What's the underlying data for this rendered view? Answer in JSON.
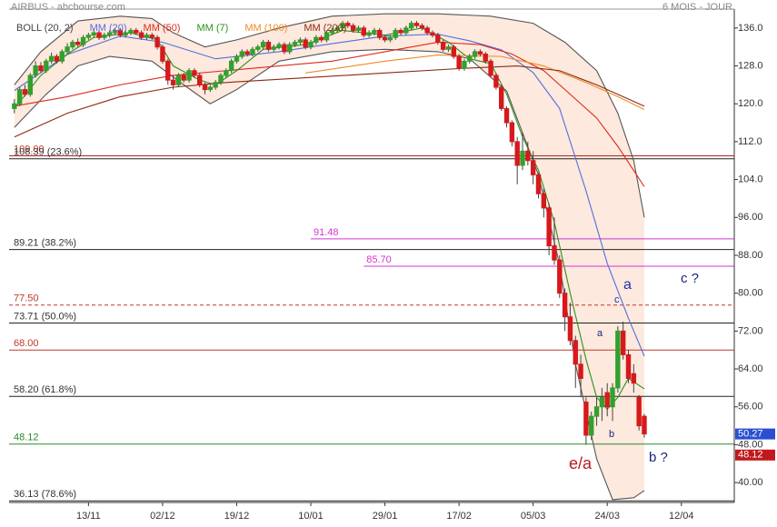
{
  "chart_data": {
    "type": "candlestick",
    "title": "AIRBUS - abcbourse.com",
    "period": "6 MOIS - JOUR",
    "xlim": [
      -1,
      136
    ],
    "ylim": [
      35.8,
      140
    ],
    "xticks": [
      {
        "value": 14,
        "label": "13/11"
      },
      {
        "value": 28,
        "label": "02/12"
      },
      {
        "value": 42,
        "label": "19/12"
      },
      {
        "value": 56,
        "label": "10/01"
      },
      {
        "value": 70,
        "label": "29/01"
      },
      {
        "value": 84,
        "label": "17/02"
      },
      {
        "value": 98,
        "label": "05/03"
      },
      {
        "value": 112,
        "label": "24/03"
      },
      {
        "value": 126,
        "label": "12/04"
      }
    ],
    "yticks": [
      {
        "value": 136,
        "label": "136.0"
      },
      {
        "value": 128,
        "label": "128.0"
      },
      {
        "value": 120,
        "label": "120.0"
      },
      {
        "value": 112,
        "label": "112.0"
      },
      {
        "value": 104,
        "label": "104.0"
      },
      {
        "value": 96,
        "label": "96.00"
      },
      {
        "value": 88,
        "label": "88.00"
      },
      {
        "value": 80,
        "label": "80.00"
      },
      {
        "value": 72,
        "label": "72.00"
      },
      {
        "value": 64,
        "label": "64.00"
      },
      {
        "value": 56,
        "label": "56.00"
      },
      {
        "value": 48,
        "label": "48.00"
      },
      {
        "value": 40,
        "label": "40.00"
      }
    ],
    "up_color": "#33a02c",
    "down_color": "#d7191c",
    "band_color": "#fde3d4",
    "candles": [
      [
        119,
        121,
        118,
        120
      ],
      [
        120,
        123.5,
        119.5,
        123
      ],
      [
        123,
        124,
        121.5,
        122
      ],
      [
        122,
        126.5,
        121.5,
        126
      ],
      [
        126,
        129,
        125.5,
        128
      ],
      [
        128,
        128.8,
        126.5,
        127
      ],
      [
        127,
        129.5,
        126.5,
        129
      ],
      [
        129,
        130.8,
        128.5,
        130
      ],
      [
        130,
        130.5,
        128.5,
        129
      ],
      [
        129,
        131.5,
        128.5,
        131
      ],
      [
        131,
        132.8,
        130.5,
        132
      ],
      [
        132,
        133.5,
        131.5,
        133
      ],
      [
        133,
        133.8,
        132,
        132.5
      ],
      [
        132.5,
        134.5,
        132,
        134
      ],
      [
        134,
        135,
        133.5,
        134.5
      ],
      [
        134.5,
        135.8,
        134,
        135
      ],
      [
        135,
        135.5,
        133.5,
        134
      ],
      [
        134,
        135,
        133.5,
        134.5
      ],
      [
        134.5,
        135.5,
        134,
        135
      ],
      [
        135,
        136,
        134.5,
        135.5
      ],
      [
        135.5,
        136,
        134,
        134.5
      ],
      [
        134.5,
        135.5,
        134,
        135
      ],
      [
        135,
        136,
        134.5,
        135.5
      ],
      [
        135.5,
        136,
        134.5,
        135
      ],
      [
        135,
        135.5,
        133.5,
        134
      ],
      [
        134,
        135,
        133.5,
        134.5
      ],
      [
        134.5,
        135,
        133.5,
        134
      ],
      [
        134,
        134.5,
        131.5,
        132
      ],
      [
        132,
        132.5,
        128.5,
        129
      ],
      [
        129,
        129.5,
        124,
        125
      ],
      [
        125,
        126,
        123,
        124
      ],
      [
        124,
        126.5,
        123.5,
        126
      ],
      [
        126,
        126.5,
        124.5,
        125
      ],
      [
        125,
        127.5,
        124.5,
        127
      ],
      [
        127,
        127.5,
        125.5,
        126
      ],
      [
        126,
        126.5,
        123.5,
        124
      ],
      [
        124,
        124.5,
        122,
        123
      ],
      [
        123,
        124,
        122.5,
        123.5
      ],
      [
        123.5,
        125,
        123,
        124.5
      ],
      [
        124.5,
        126.5,
        124,
        126
      ],
      [
        126,
        127.5,
        125.5,
        127
      ],
      [
        127,
        129.5,
        126.5,
        129
      ],
      [
        129,
        130.5,
        128.5,
        130
      ],
      [
        130,
        131.5,
        129.5,
        131
      ],
      [
        131,
        131.5,
        130,
        130.5
      ],
      [
        130.5,
        132,
        130,
        131.5
      ],
      [
        131.5,
        132.5,
        131,
        132
      ],
      [
        132,
        133.5,
        131.5,
        133
      ],
      [
        133,
        133.5,
        131,
        131.5
      ],
      [
        131.5,
        132.5,
        131,
        132
      ],
      [
        132,
        133,
        131.5,
        132.5
      ],
      [
        132.5,
        133,
        130.5,
        131
      ],
      [
        131,
        133,
        130.5,
        132.5
      ],
      [
        132.5,
        133.5,
        132,
        133
      ],
      [
        133,
        134,
        132.5,
        133.5
      ],
      [
        133.5,
        134,
        131.5,
        132
      ],
      [
        132,
        133.5,
        131.5,
        133
      ],
      [
        133,
        134.5,
        132.5,
        134
      ],
      [
        134,
        134.5,
        133,
        133.5
      ],
      [
        133.5,
        135.5,
        133,
        135
      ],
      [
        135,
        136,
        134.5,
        135.5
      ],
      [
        135.5,
        136.5,
        135,
        136
      ],
      [
        136,
        137.5,
        135.5,
        137
      ],
      [
        137,
        137.5,
        136,
        136.5
      ],
      [
        136.5,
        137,
        135,
        135.5
      ],
      [
        135.5,
        136.5,
        135,
        136
      ],
      [
        136,
        136.5,
        134,
        134.5
      ],
      [
        134.5,
        135.5,
        134,
        135
      ],
      [
        135,
        136,
        134.5,
        135.5
      ],
      [
        135.5,
        136,
        133.5,
        134
      ],
      [
        134,
        134.5,
        133,
        133.5
      ],
      [
        133.5,
        134.5,
        133,
        134
      ],
      [
        134,
        136,
        133.5,
        135.5
      ],
      [
        135.5,
        136,
        134.5,
        135
      ],
      [
        135,
        136.5,
        134.5,
        136
      ],
      [
        136,
        137.5,
        135.5,
        137
      ],
      [
        137,
        137.5,
        136,
        136.5
      ],
      [
        136.5,
        137,
        135.5,
        136
      ],
      [
        136,
        136.5,
        134.5,
        135
      ],
      [
        135,
        135.5,
        134,
        134.5
      ],
      [
        134.5,
        135,
        132.5,
        133
      ],
      [
        133,
        133.5,
        131,
        131.5
      ],
      [
        131.5,
        132.5,
        131,
        132
      ],
      [
        132,
        132.5,
        129.5,
        130
      ],
      [
        130,
        130.5,
        127,
        127.5
      ],
      [
        127.5,
        129.5,
        127,
        129
      ],
      [
        129,
        130.5,
        128.5,
        130
      ],
      [
        130,
        131.5,
        129.5,
        131
      ],
      [
        131,
        131.5,
        130,
        130.5
      ],
      [
        130.5,
        131,
        128.5,
        129
      ],
      [
        129,
        129.5,
        125.5,
        126
      ],
      [
        126,
        126.5,
        123,
        123.5
      ],
      [
        123.5,
        124,
        118.5,
        119
      ],
      [
        119,
        119.5,
        115,
        116
      ],
      [
        116,
        116.5,
        111,
        112
      ],
      [
        112,
        113,
        103,
        107
      ],
      [
        107,
        114,
        106,
        110
      ],
      [
        110,
        112,
        107,
        108
      ],
      [
        108,
        110,
        103,
        105
      ],
      [
        105,
        105.5,
        100,
        101
      ],
      [
        101,
        102,
        96,
        98
      ],
      [
        98,
        99,
        88,
        90
      ],
      [
        90,
        96,
        86,
        87
      ],
      [
        87,
        88,
        79,
        80
      ],
      [
        80,
        81,
        72,
        75
      ],
      [
        75,
        78,
        69,
        70
      ],
      [
        70,
        71,
        60,
        65
      ],
      [
        65,
        67,
        58,
        62
      ],
      [
        57,
        58,
        48,
        50
      ],
      [
        50,
        55,
        49,
        54
      ],
      [
        54,
        58,
        52,
        56
      ],
      [
        56,
        60,
        53,
        58
      ],
      [
        59,
        61,
        54,
        56
      ],
      [
        56,
        61,
        53,
        60
      ],
      [
        60,
        73,
        59,
        72
      ],
      [
        72,
        74,
        66,
        67
      ],
      [
        67,
        68,
        61,
        62
      ],
      [
        63,
        65,
        59,
        61
      ],
      [
        58,
        58.5,
        51,
        52
      ],
      [
        54,
        54.5,
        49.5,
        50.27
      ]
    ],
    "last_price": 50.27,
    "lines": [
      {
        "name": "BOLL (20, 2)",
        "color": "#555555",
        "x": [
          0,
          5,
          12,
          20,
          26,
          30,
          36,
          42,
          50,
          60,
          70,
          80,
          90,
          98,
          104,
          110,
          114,
          117,
          119
        ],
        "values": [
          124,
          131,
          137.5,
          138.5,
          138,
          135,
          132,
          133.5,
          136,
          138.5,
          139,
          139,
          138.5,
          137,
          133,
          127,
          118,
          108,
          96
        ]
      },
      {
        "name": "BOLL (20, 2)",
        "color": "#555555",
        "x": [
          0,
          6,
          12,
          18,
          26,
          32,
          37,
          42,
          50,
          60,
          70,
          80,
          86,
          93,
          99,
          103,
          106,
          110,
          113,
          117,
          119
        ],
        "values": [
          115,
          122,
          128,
          130,
          129,
          124,
          120,
          123,
          129,
          131,
          131.5,
          131,
          129.5,
          122.7,
          105,
          86,
          65,
          45,
          36.4,
          36.8,
          38.3
        ]
      },
      {
        "name": "MM (20)",
        "color": "#4f6fe0",
        "x": [
          0,
          10,
          20,
          28,
          38,
          50,
          60,
          70,
          80,
          86,
          92,
          98,
          103,
          108,
          112,
          116,
          119
        ],
        "values": [
          122.8,
          130.4,
          134.3,
          133,
          129.5,
          131,
          132.7,
          134.3,
          134.7,
          133.3,
          131.4,
          126.6,
          119,
          101.6,
          86.3,
          74.7,
          66.7
        ]
      },
      {
        "name": "MM (50)",
        "color": "#e0281e",
        "x": [
          0,
          10,
          20,
          30,
          40,
          50,
          60,
          70,
          80,
          88,
          94,
          100,
          106,
          110,
          114,
          119
        ],
        "values": [
          119.5,
          121.5,
          124,
          126,
          127,
          128,
          129,
          131,
          133,
          132.5,
          130.5,
          127,
          121,
          117,
          111,
          102.5
        ]
      },
      {
        "name": "MM (7)",
        "color": "#2f8f1f",
        "x": [
          0,
          5,
          10,
          15,
          22,
          27,
          30,
          35,
          38,
          42,
          47,
          55,
          62,
          70,
          77,
          82,
          86,
          90,
          93,
          96,
          99,
          102,
          105,
          108,
          110,
          112,
          114,
          116,
          119
        ],
        "values": [
          119,
          126,
          130.5,
          134,
          135,
          133.5,
          128,
          125,
          124,
          127,
          131.5,
          132.5,
          135.5,
          134.5,
          136,
          133,
          129.5,
          128.5,
          122,
          113,
          106,
          95,
          80,
          66,
          58,
          55.5,
          58,
          62,
          59.8
        ]
      },
      {
        "name": "MM (100)",
        "color": "#f08a24",
        "x": [
          55,
          70,
          80,
          92,
          100,
          108,
          114,
          119
        ],
        "values": [
          126.5,
          129,
          130.3,
          130,
          128,
          124.5,
          121.5,
          118.8
        ]
      },
      {
        "name": "MM (200)",
        "color": "#8b2a12",
        "x": [
          0,
          10,
          20,
          30,
          40,
          55,
          70,
          85,
          95,
          103,
          110,
          119
        ],
        "values": [
          113,
          118,
          121.5,
          123.5,
          124.5,
          125.5,
          126.5,
          127.5,
          128,
          127,
          124,
          119.5
        ]
      }
    ],
    "legend": [
      {
        "name": "BOLL (20, 2)",
        "color": "#444444"
      },
      {
        "name": "MM (20)",
        "color": "#4f6fe0"
      },
      {
        "name": "MM (50)",
        "color": "#e0281e"
      },
      {
        "name": "MM (7)",
        "color": "#2f8f1f"
      },
      {
        "name": "MM (100)",
        "color": "#f08a24"
      },
      {
        "name": "MM (200)",
        "color": "#8b2a12"
      }
    ],
    "levels": [
      {
        "value": 109,
        "label": "109.00",
        "color": "#b22222",
        "text_color": "#c0392b"
      },
      {
        "value": 108.39,
        "label": "108.39 (23.6%)",
        "color": "#222222",
        "text_color": "#333333"
      },
      {
        "value": 91.48,
        "color": "#d633d6",
        "text_color": "#d633d6",
        "start": 56
      },
      {
        "value": 89.21,
        "label": "89.21 (38.2%)",
        "color": "#222222",
        "text_color": "#333333"
      },
      {
        "value": 85.7,
        "label": "85.70",
        "color": "#d633d6",
        "text_color": "#d633d6",
        "start": 66
      },
      {
        "value": 77.5,
        "label": "77.50",
        "color": "#c0392b",
        "text_color": "#c0392b",
        "dashed": true
      },
      {
        "value": 73.71,
        "label": "73.71 (50.0%)",
        "color": "#222222",
        "text_color": "#333333"
      },
      {
        "value": 68,
        "label": "68.00",
        "color": "#c0392b",
        "text_color": "#c0392b"
      },
      {
        "value": 58.2,
        "label": "58.20 (61.8%)",
        "color": "#222222",
        "text_color": "#333333"
      },
      {
        "value": 48.12,
        "color": "#2a8a2a",
        "text_color": "#2a8a2a"
      },
      {
        "value": 36.13,
        "label": "36.13 (78.6%)",
        "color": "#222222",
        "text_color": "#333333"
      }
    ],
    "annotations": [
      "a",
      "c",
      "a",
      "b",
      "e/a",
      "b ?",
      "c ?"
    ]
  }
}
